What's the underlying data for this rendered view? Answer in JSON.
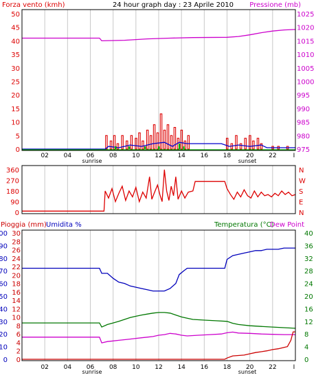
{
  "colors": {
    "wind": "#dd0000",
    "wind_avg": "#0000cc",
    "wind_gust": "#00aa00",
    "pressure": "#cc00cc",
    "direction": "#dd0000",
    "rain": "#cc0000",
    "humidity": "#0000bb",
    "temperature": "#007700",
    "dewpoint": "#cc00cc",
    "grid": "#c8c8c8",
    "frame": "#000000"
  },
  "chart_data": [
    {
      "type": "line",
      "title": "24 hour graph day : 23 Aprile 2010",
      "ylabel": "Forza vento (kmh)",
      "y2label": "Pressione (mb)",
      "ylim": [
        0,
        50
      ],
      "y2lim": [
        975,
        1025
      ],
      "yticks": [
        "0",
        "5",
        "10",
        "15",
        "20",
        "25",
        "30",
        "35",
        "40",
        "45",
        "50"
      ],
      "y2ticks": [
        "975",
        "980",
        "985",
        "990",
        "995",
        "1000",
        "1005",
        "1010",
        "1015",
        "1020",
        "1025"
      ],
      "xticks": [
        "02",
        "04",
        "06",
        "08",
        "10",
        "12",
        "14",
        "16",
        "18",
        "20",
        "22"
      ],
      "xlim": [
        0,
        24
      ],
      "sunrise_label": "sunrise",
      "sunset_label": "sunset",
      "end_tick_label": "I",
      "series": [
        {
          "role": "pressure",
          "points": [
            [
              0,
              1016.0
            ],
            [
              6.8,
              1016.0
            ],
            [
              7.0,
              1015.0
            ],
            [
              9,
              1015.2
            ],
            [
              11,
              1015.7
            ],
            [
              13,
              1016.0
            ],
            [
              15,
              1016.2
            ],
            [
              18,
              1016.3
            ],
            [
              19,
              1016.6
            ],
            [
              20,
              1017.2
            ],
            [
              21,
              1018.0
            ],
            [
              22,
              1018.6
            ],
            [
              23,
              1019.0
            ],
            [
              24,
              1019.2
            ]
          ]
        },
        {
          "role": "wind",
          "bars": [
            [
              7.4,
              5
            ],
            [
              7.8,
              3
            ],
            [
              8.1,
              5
            ],
            [
              8.4,
              2
            ],
            [
              8.8,
              5
            ],
            [
              9.2,
              3
            ],
            [
              9.6,
              5
            ],
            [
              10.0,
              4
            ],
            [
              10.3,
              6
            ],
            [
              10.6,
              3
            ],
            [
              11.0,
              7
            ],
            [
              11.3,
              5
            ],
            [
              11.6,
              9
            ],
            [
              11.9,
              6
            ],
            [
              12.2,
              13
            ],
            [
              12.5,
              7
            ],
            [
              12.8,
              9
            ],
            [
              13.1,
              5
            ],
            [
              13.4,
              8
            ],
            [
              13.7,
              4
            ],
            [
              14.0,
              7
            ],
            [
              14.3,
              3
            ],
            [
              14.6,
              5
            ],
            [
              18.0,
              4
            ],
            [
              18.4,
              2
            ],
            [
              18.8,
              5
            ],
            [
              19.2,
              2
            ],
            [
              19.6,
              4
            ],
            [
              20.0,
              5
            ],
            [
              20.3,
              3
            ],
            [
              20.7,
              4
            ],
            [
              21.0,
              2
            ],
            [
              22.0,
              1
            ],
            [
              22.5,
              1
            ],
            [
              23.3,
              1
            ]
          ]
        },
        {
          "role": "wind_avg",
          "points": [
            [
              0,
              0
            ],
            [
              7.3,
              0
            ],
            [
              7.6,
              1
            ],
            [
              8.5,
              0.5
            ],
            [
              9.5,
              1.5
            ],
            [
              10.5,
              1
            ],
            [
              11.5,
              2
            ],
            [
              12.5,
              2.5
            ],
            [
              13.2,
              1
            ],
            [
              13.8,
              2.5
            ],
            [
              14.5,
              2
            ],
            [
              17.5,
              2
            ],
            [
              18.2,
              1
            ],
            [
              19,
              1.5
            ],
            [
              20,
              1
            ],
            [
              21,
              1.5
            ],
            [
              21.5,
              0.5
            ],
            [
              24,
              0.5
            ]
          ]
        },
        {
          "role": "wind_gust",
          "bars": [
            [
              8.2,
              1
            ],
            [
              9.4,
              1
            ],
            [
              10.8,
              1
            ],
            [
              12.0,
              1
            ],
            [
              13.8,
              2
            ],
            [
              14.2,
              1
            ]
          ]
        }
      ]
    },
    {
      "type": "line",
      "ylabel": "",
      "ylim": [
        0,
        360
      ],
      "yticks": [
        "0",
        "90",
        "180",
        "270",
        "360"
      ],
      "y2ticks": [
        "N",
        "E",
        "S",
        "W",
        "N"
      ],
      "xticks": [],
      "series": [
        {
          "role": "direction",
          "points": [
            [
              0,
              10
            ],
            [
              7.2,
              10
            ],
            [
              7.3,
              180
            ],
            [
              7.6,
              120
            ],
            [
              7.9,
              200
            ],
            [
              8.2,
              90
            ],
            [
              8.5,
              160
            ],
            [
              8.8,
              220
            ],
            [
              9.1,
              100
            ],
            [
              9.4,
              180
            ],
            [
              9.7,
              130
            ],
            [
              10.0,
              210
            ],
            [
              10.3,
              90
            ],
            [
              10.6,
              170
            ],
            [
              10.9,
              120
            ],
            [
              11.2,
              300
            ],
            [
              11.4,
              110
            ],
            [
              11.6,
              160
            ],
            [
              11.9,
              230
            ],
            [
              12.1,
              150
            ],
            [
              12.3,
              90
            ],
            [
              12.5,
              360
            ],
            [
              12.7,
              180
            ],
            [
              12.9,
              100
            ],
            [
              13.1,
              220
            ],
            [
              13.3,
              140
            ],
            [
              13.5,
              300
            ],
            [
              13.7,
              110
            ],
            [
              14.0,
              180
            ],
            [
              14.3,
              120
            ],
            [
              14.6,
              170
            ],
            [
              15.0,
              180
            ],
            [
              15.2,
              260
            ],
            [
              17.8,
              260
            ],
            [
              18.0,
              200
            ],
            [
              18.3,
              150
            ],
            [
              18.6,
              110
            ],
            [
              18.9,
              170
            ],
            [
              19.2,
              130
            ],
            [
              19.5,
              190
            ],
            [
              19.8,
              140
            ],
            [
              20.1,
              120
            ],
            [
              20.4,
              180
            ],
            [
              20.7,
              130
            ],
            [
              21.0,
              170
            ],
            [
              21.3,
              140
            ],
            [
              21.6,
              150
            ],
            [
              21.9,
              130
            ],
            [
              22.2,
              160
            ],
            [
              22.5,
              140
            ],
            [
              22.8,
              180
            ],
            [
              23.1,
              150
            ],
            [
              23.4,
              170
            ],
            [
              23.7,
              140
            ],
            [
              24,
              150
            ]
          ]
        }
      ]
    },
    {
      "type": "line",
      "ylabel": "Pioggia (mm)",
      "ylabel2": "Umidita %",
      "y2label": "Temperatura (°C)",
      "y3label": "Dew Point",
      "ylim": [
        0,
        30
      ],
      "humidity_lim": [
        0,
        100
      ],
      "y2lim": [
        0,
        40
      ],
      "yticks_rain": [
        "0",
        "2",
        "4",
        "6",
        "8",
        "10",
        "12",
        "14",
        "16",
        "18",
        "20",
        "22",
        "24",
        "26",
        "28",
        "30"
      ],
      "yticks_hum": [
        "0",
        "10",
        "20",
        "30",
        "40",
        "50",
        "60",
        "70",
        "80",
        "90",
        "100"
      ],
      "y2ticks": [
        "0",
        "4",
        "8",
        "12",
        "16",
        "20",
        "24",
        "28",
        "32",
        "36",
        "40"
      ],
      "xticks": [
        "02",
        "04",
        "06",
        "08",
        "10",
        "12",
        "14",
        "16",
        "18",
        "20",
        "22"
      ],
      "xlim": [
        0,
        24
      ],
      "sunrise_label": "sunrise",
      "sunset_label": "sunset",
      "end_tick_label": "I",
      "series": [
        {
          "role": "humidity",
          "points": [
            [
              0,
              72
            ],
            [
              6.8,
              72
            ],
            [
              7.0,
              68
            ],
            [
              7.5,
              68
            ],
            [
              8.0,
              64
            ],
            [
              8.5,
              61
            ],
            [
              9.0,
              60
            ],
            [
              9.5,
              58
            ],
            [
              10.0,
              57
            ],
            [
              10.5,
              56
            ],
            [
              11.0,
              55
            ],
            [
              11.5,
              54
            ],
            [
              12.0,
              54
            ],
            [
              12.5,
              54
            ],
            [
              13.0,
              56
            ],
            [
              13.5,
              60
            ],
            [
              13.8,
              67
            ],
            [
              14.2,
              70
            ],
            [
              14.5,
              72
            ],
            [
              17.8,
              72
            ],
            [
              18.0,
              79
            ],
            [
              18.5,
              82
            ],
            [
              19.0,
              83
            ],
            [
              19.5,
              84
            ],
            [
              20.0,
              85
            ],
            [
              20.5,
              86
            ],
            [
              21.0,
              86
            ],
            [
              21.5,
              87
            ],
            [
              22.0,
              87
            ],
            [
              22.5,
              87
            ],
            [
              23.0,
              88
            ],
            [
              24,
              88
            ]
          ]
        },
        {
          "role": "temperature",
          "points": [
            [
              0,
              11.5
            ],
            [
              6.8,
              11.5
            ],
            [
              7.0,
              10.2
            ],
            [
              7.5,
              11.0
            ],
            [
              8.0,
              11.5
            ],
            [
              8.5,
              12.0
            ],
            [
              9.0,
              12.6
            ],
            [
              9.5,
              13.2
            ],
            [
              10.0,
              13.6
            ],
            [
              10.5,
              14.0
            ],
            [
              11.0,
              14.3
            ],
            [
              11.5,
              14.6
            ],
            [
              12.0,
              14.8
            ],
            [
              12.5,
              14.8
            ],
            [
              13.0,
              14.6
            ],
            [
              13.5,
              14.0
            ],
            [
              14.0,
              13.4
            ],
            [
              14.5,
              13.0
            ],
            [
              15.0,
              12.6
            ],
            [
              16.0,
              12.4
            ],
            [
              17.0,
              12.2
            ],
            [
              18.0,
              12.0
            ],
            [
              18.5,
              11.4
            ],
            [
              19.0,
              11.0
            ],
            [
              20.0,
              10.6
            ],
            [
              21.0,
              10.4
            ],
            [
              22.0,
              10.2
            ],
            [
              23.0,
              10.0
            ],
            [
              24,
              9.8
            ]
          ]
        },
        {
          "role": "dewpoint",
          "points": [
            [
              0,
              7.0
            ],
            [
              6.8,
              7.0
            ],
            [
              7.0,
              5.2
            ],
            [
              7.5,
              5.6
            ],
            [
              8.0,
              5.8
            ],
            [
              8.5,
              6.0
            ],
            [
              9.0,
              6.2
            ],
            [
              9.5,
              6.4
            ],
            [
              10.0,
              6.6
            ],
            [
              10.5,
              6.8
            ],
            [
              11.0,
              7.0
            ],
            [
              11.5,
              7.2
            ],
            [
              12.0,
              7.6
            ],
            [
              12.5,
              7.8
            ],
            [
              13.0,
              8.2
            ],
            [
              13.5,
              8.0
            ],
            [
              14.0,
              7.6
            ],
            [
              14.5,
              7.4
            ],
            [
              15.5,
              7.6
            ],
            [
              16.5,
              7.8
            ],
            [
              17.5,
              8.0
            ],
            [
              18.0,
              8.4
            ],
            [
              18.5,
              8.6
            ],
            [
              19.0,
              8.3
            ],
            [
              20.0,
              8.2
            ],
            [
              21.0,
              8.0
            ],
            [
              22.0,
              7.9
            ],
            [
              23.0,
              7.8
            ],
            [
              24,
              7.8
            ]
          ]
        },
        {
          "role": "rain",
          "points": [
            [
              0,
              0
            ],
            [
              17.8,
              0
            ],
            [
              18.0,
              0.3
            ],
            [
              18.5,
              0.8
            ],
            [
              19.0,
              0.9
            ],
            [
              19.5,
              1.0
            ],
            [
              20.0,
              1.3
            ],
            [
              20.5,
              1.6
            ],
            [
              21.0,
              1.8
            ],
            [
              21.5,
              2.0
            ],
            [
              22.0,
              2.3
            ],
            [
              22.5,
              2.5
            ],
            [
              23.0,
              2.8
            ],
            [
              23.3,
              3.0
            ],
            [
              23.6,
              4.5
            ],
            [
              23.8,
              6.5
            ],
            [
              24,
              6.5
            ]
          ]
        }
      ]
    }
  ]
}
